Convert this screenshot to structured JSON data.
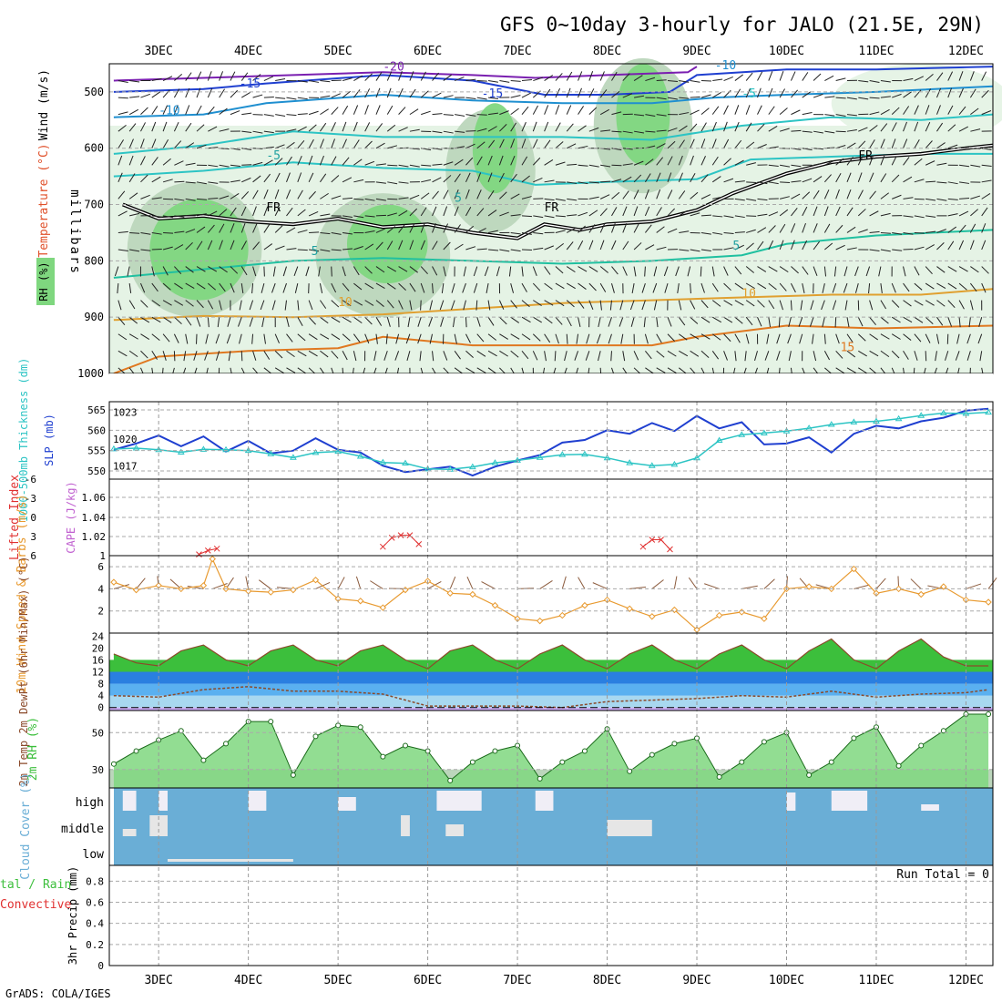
{
  "title": "GFS 0~10day 3-hourly for JALO (21.5E, 29N)",
  "footer": "GrADS: COLA/IGES",
  "colors": {
    "rh_green": "#7fd77f",
    "rh_mid": "#bcd6bc",
    "rh_light": "#e5f3e5",
    "slp_blue": "#1f3fd0",
    "thickness_cyan": "#2cc4c4",
    "lifted_index_red": "#e03030",
    "wind_orange": "#e89a30",
    "barb_brown": "#8b5a3c",
    "temp_green": "#3cbf3c",
    "dewpt_brown": "#8b4a2a",
    "cloud_blue": "#6aaed6",
    "cloud_white": "#f0eef6",
    "cloud_grey": "#e6e6e6",
    "run_total": "#000000"
  },
  "chart_data": [
    {
      "panel": "upper_air",
      "type": "heatmap",
      "ylabel": "millibars",
      "side_labels": {
        "wind": "Wind (m/s)",
        "temperature": "Temperature (°C)",
        "rh": "RH (%)"
      },
      "x_ticks": [
        "3DEC",
        "4DEC",
        "5DEC",
        "6DEC",
        "7DEC",
        "8DEC",
        "9DEC",
        "10DEC",
        "11DEC",
        "12DEC"
      ],
      "y_ticks": [
        500,
        600,
        700,
        800,
        900,
        1000
      ],
      "ylim": [
        1000,
        450
      ],
      "contour_labels": [
        "-20",
        "-15",
        "-15",
        "-10",
        "-10",
        "-5",
        "-5",
        "5",
        "5",
        "5",
        "10",
        "10",
        "15",
        "FR",
        "FR",
        "FR"
      ],
      "freezing_level_mb": [
        {
          "x": 2.6,
          "y": 700
        },
        {
          "x": 3.0,
          "y": 725
        },
        {
          "x": 3.5,
          "y": 720
        },
        {
          "x": 4.0,
          "y": 730
        },
        {
          "x": 4.5,
          "y": 735
        },
        {
          "x": 5.0,
          "y": 725
        },
        {
          "x": 5.5,
          "y": 740
        },
        {
          "x": 6.0,
          "y": 735
        },
        {
          "x": 6.5,
          "y": 750
        },
        {
          "x": 7.0,
          "y": 760
        },
        {
          "x": 7.3,
          "y": 735
        },
        {
          "x": 7.7,
          "y": 745
        },
        {
          "x": 8.0,
          "y": 735
        },
        {
          "x": 8.5,
          "y": 730
        },
        {
          "x": 9.0,
          "y": 710
        },
        {
          "x": 9.4,
          "y": 680
        },
        {
          "x": 10.0,
          "y": 645
        },
        {
          "x": 10.5,
          "y": 625
        },
        {
          "x": 11.0,
          "y": 615
        },
        {
          "x": 11.5,
          "y": 610
        },
        {
          "x": 12.0,
          "y": 600
        },
        {
          "x": 12.3,
          "y": 595
        }
      ]
    },
    {
      "panel": "slp_thickness",
      "type": "line",
      "ylabel_left": "1000-500mb Thickness (dm)",
      "ylabel_right": "SLP (mb)",
      "left_ticks": [
        "565",
        "560",
        "555",
        "550"
      ],
      "right_ticks": [
        "1023",
        "1020",
        "1017"
      ],
      "ylim_left": [
        548,
        567
      ],
      "series": [
        {
          "name": "SLP (mb)",
          "x": [
            2.5,
            2.75,
            3.0,
            3.25,
            3.5,
            3.75,
            4.0,
            4.25,
            4.5,
            4.75,
            5.0,
            5.25,
            5.5,
            5.75,
            6.0,
            6.25,
            6.5,
            6.75,
            7.0,
            7.25,
            7.5,
            7.75,
            8.0,
            8.25,
            8.5,
            8.75,
            9.0,
            9.25,
            9.5,
            9.75,
            10.0,
            10.25,
            10.5,
            10.75,
            11.0,
            11.25,
            11.5,
            11.75,
            12.0,
            12.25
          ],
          "values": [
            1018.8,
            1019.5,
            1020.4,
            1019.2,
            1020.3,
            1018.6,
            1019.8,
            1018.4,
            1018.7,
            1020.1,
            1018.8,
            1018.5,
            1017.0,
            1016.3,
            1016.6,
            1016.9,
            1015.9,
            1016.9,
            1017.6,
            1018.2,
            1019.6,
            1019.9,
            1021.0,
            1020.6,
            1021.8,
            1020.9,
            1022.6,
            1021.2,
            1021.9,
            1019.4,
            1019.5,
            1020.2,
            1018.5,
            1020.6,
            1021.5,
            1021.2,
            1022.0,
            1022.4,
            1023.2,
            1023.4
          ]
        },
        {
          "name": "1000-500mb Thickness (dm)",
          "x": [
            2.5,
            2.75,
            3.0,
            3.25,
            3.5,
            3.75,
            4.0,
            4.25,
            4.5,
            4.75,
            5.0,
            5.25,
            5.5,
            5.75,
            6.0,
            6.25,
            6.5,
            6.75,
            7.0,
            7.25,
            7.5,
            7.75,
            8.0,
            8.25,
            8.5,
            8.75,
            9.0,
            9.25,
            9.5,
            9.75,
            10.0,
            10.25,
            10.5,
            10.75,
            11.0,
            11.25,
            11.5,
            11.75,
            12.0,
            12.25
          ],
          "values": [
            555.4,
            555.6,
            555.2,
            554.6,
            555.3,
            555.2,
            555.0,
            554.2,
            553.3,
            554.5,
            554.8,
            553.6,
            552.1,
            551.9,
            550.5,
            550.4,
            551.0,
            552.0,
            552.6,
            553.3,
            554.0,
            554.1,
            553.2,
            552.0,
            551.3,
            551.6,
            553.2,
            557.5,
            558.9,
            559.3,
            559.8,
            560.5,
            561.4,
            562.0,
            562.2,
            562.8,
            563.6,
            564.2,
            564.1,
            564.4
          ]
        }
      ]
    },
    {
      "panel": "lifted_index_cape",
      "type": "line",
      "ylabel_left": "Lifted Index",
      "ylabel_right": "CAPE (J/kg)",
      "left_ticks": [
        "-6",
        "-3",
        "0",
        "3",
        "6"
      ],
      "right_ticks": [
        "1.06",
        "1.04",
        "1.02",
        "1"
      ],
      "ylim_left": [
        6,
        -6
      ],
      "series": [
        {
          "name": "Lifted Index",
          "x": [
            3.45,
            3.55,
            3.65,
            5.5,
            5.6,
            5.7,
            5.8,
            5.9,
            8.4,
            8.5,
            8.6,
            8.7
          ],
          "values": [
            5.8,
            5.2,
            4.9,
            4.6,
            3.2,
            2.8,
            2.8,
            4.2,
            4.6,
            3.5,
            3.5,
            5.0
          ]
        }
      ],
      "zero_line": 0
    },
    {
      "panel": "wind_10m",
      "type": "line",
      "ylabel": "10m Wind Speed & Barbs (m/s)",
      "y_ticks": [
        6,
        4,
        2
      ],
      "ylim": [
        0,
        7
      ],
      "series": [
        {
          "name": "10m Wind Speed",
          "x": [
            2.5,
            2.75,
            3.0,
            3.25,
            3.5,
            3.6,
            3.75,
            4.0,
            4.25,
            4.5,
            4.75,
            5.0,
            5.25,
            5.5,
            5.75,
            6.0,
            6.25,
            6.5,
            6.75,
            7.0,
            7.25,
            7.5,
            7.75,
            8.0,
            8.25,
            8.5,
            8.75,
            9.0,
            9.25,
            9.5,
            9.75,
            10.0,
            10.25,
            10.5,
            10.75,
            11.0,
            11.25,
            11.5,
            11.75,
            12.0,
            12.25
          ],
          "values": [
            4.6,
            3.9,
            4.3,
            4.0,
            4.3,
            6.7,
            4.0,
            3.8,
            3.7,
            3.9,
            4.8,
            3.1,
            2.9,
            2.3,
            3.9,
            4.7,
            3.6,
            3.5,
            2.5,
            1.3,
            1.1,
            1.6,
            2.5,
            3.0,
            2.2,
            1.5,
            2.1,
            0.3,
            1.6,
            1.9,
            1.3,
            4.0,
            4.2,
            4.0,
            5.8,
            3.6,
            4.0,
            3.5,
            4.2,
            3.0,
            2.8
          ]
        }
      ]
    },
    {
      "panel": "temp_2m",
      "type": "area",
      "ylabel": "2m Temp 2m DewPt (6hr Min/Max) (°C)",
      "y_ticks": [
        24,
        20,
        16,
        12,
        8,
        4,
        0
      ],
      "ylim": [
        -1,
        25
      ],
      "series": [
        {
          "name": "2m Temp",
          "x": [
            2.5,
            2.75,
            3.0,
            3.25,
            3.5,
            3.75,
            4.0,
            4.25,
            4.5,
            4.75,
            5.0,
            5.25,
            5.5,
            5.75,
            6.0,
            6.25,
            6.5,
            6.75,
            7.0,
            7.25,
            7.5,
            7.75,
            8.0,
            8.25,
            8.5,
            8.75,
            9.0,
            9.25,
            9.5,
            9.75,
            10.0,
            10.25,
            10.5,
            10.75,
            11.0,
            11.25,
            11.5,
            11.75,
            12.0,
            12.25
          ],
          "values": [
            18,
            15,
            14,
            19,
            21,
            16,
            14,
            19,
            21,
            16,
            14,
            19,
            21,
            16,
            13,
            19,
            21,
            16,
            13,
            18,
            21,
            16,
            13,
            18,
            21,
            16,
            13,
            18,
            21,
            16,
            13,
            19,
            23,
            16,
            13,
            19,
            23,
            17,
            14,
            14
          ]
        },
        {
          "name": "2m DewPt",
          "x": [
            2.5,
            3.0,
            3.5,
            4.0,
            4.5,
            5.0,
            5.5,
            6.0,
            6.5,
            7.0,
            7.5,
            8.0,
            8.5,
            9.0,
            9.5,
            10.0,
            10.5,
            11.0,
            11.5,
            12.0,
            12.25
          ],
          "values": [
            4,
            3.5,
            6,
            7,
            5.5,
            5.5,
            4.5,
            0.5,
            0.5,
            0.5,
            0,
            2,
            2.5,
            3,
            4,
            3.5,
            5.5,
            3.5,
            4.5,
            5,
            6
          ]
        }
      ],
      "zero_line": 0
    },
    {
      "panel": "rh_2m",
      "type": "area",
      "ylabel": "2m RH (%)",
      "y_ticks": [
        50,
        30
      ],
      "ylim": [
        20,
        62
      ],
      "series": [
        {
          "name": "2m RH",
          "x": [
            2.5,
            2.75,
            3.0,
            3.25,
            3.5,
            3.75,
            4.0,
            4.25,
            4.5,
            4.75,
            5.0,
            5.25,
            5.5,
            5.75,
            6.0,
            6.25,
            6.5,
            6.75,
            7.0,
            7.25,
            7.5,
            7.75,
            8.0,
            8.25,
            8.5,
            8.75,
            9.0,
            9.25,
            9.5,
            9.75,
            10.0,
            10.25,
            10.5,
            10.75,
            11.0,
            11.25,
            11.5,
            11.75,
            12.0,
            12.25
          ],
          "values": [
            33,
            40,
            46,
            51,
            35,
            44,
            56,
            56,
            27,
            48,
            54,
            53,
            37,
            43,
            40,
            24,
            34,
            40,
            43,
            25,
            34,
            40,
            52,
            29,
            38,
            44,
            47,
            26,
            34,
            45,
            50,
            27,
            34,
            47,
            53,
            32,
            43,
            51,
            60,
            60
          ]
        }
      ]
    },
    {
      "panel": "cloud_cover",
      "type": "heatmap",
      "ylabel": "Cloud Cover (%)",
      "y_ticks": [
        "high",
        "middle",
        "low"
      ]
    },
    {
      "panel": "precip_3hr",
      "type": "bar",
      "ylabel": "3hr Precip (mm)",
      "side_labels": [
        "tal / Rain",
        "Convective"
      ],
      "y_ticks": [
        "0.8",
        "0.6",
        "0.4",
        "0.2",
        "0"
      ],
      "ylim": [
        0,
        0.95
      ],
      "values": [],
      "annotation": "Run Total = 0"
    }
  ]
}
